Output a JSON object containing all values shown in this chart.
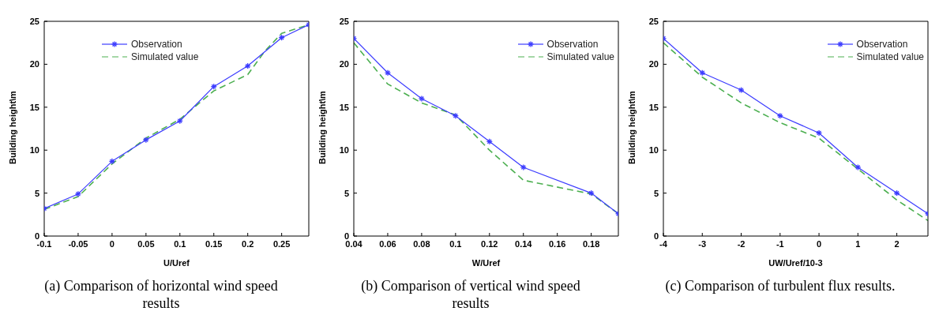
{
  "chart_data": [
    {
      "type": "line",
      "xlabel": "U/Uref",
      "ylabel": "Building height\\m",
      "xlim": [
        -0.1,
        0.29
      ],
      "xticks": [
        -0.1,
        -0.05,
        0,
        0.05,
        0.1,
        0.15,
        0.2,
        0.25
      ],
      "ylim": [
        0,
        25
      ],
      "yticks": [
        0,
        5,
        10,
        15,
        20,
        25
      ],
      "grid": false,
      "legend": "top",
      "annotations": [
        "(a) Comparison of horizontal wind speed results"
      ],
      "series": [
        {
          "name": "Observation",
          "color": "#3b3bff",
          "marker": "cross",
          "line_style": "solid",
          "x": [
            -0.1,
            -0.05,
            0,
            0.05,
            0.1,
            0.15,
            0.2,
            0.25,
            0.29
          ],
          "values": [
            3.2,
            4.9,
            8.7,
            11.2,
            13.4,
            17.4,
            19.8,
            23.1,
            24.6
          ]
        },
        {
          "name": "Simulated value",
          "color": "#4caf50",
          "marker": "none",
          "line_style": "dashed",
          "x": [
            -0.1,
            -0.05,
            0,
            0.05,
            0.1,
            0.15,
            0.2,
            0.225,
            0.25,
            0.29
          ],
          "values": [
            3.1,
            4.6,
            8.4,
            11.4,
            13.6,
            16.9,
            18.8,
            21.5,
            23.6,
            24.6
          ]
        }
      ]
    },
    {
      "type": "line",
      "xlabel": "W/Uref",
      "ylabel": "Building height\\m",
      "xlim": [
        0.04,
        0.196
      ],
      "xticks": [
        0.04,
        0.06,
        0.08,
        0.1,
        0.12,
        0.14,
        0.16,
        0.18
      ],
      "ylim": [
        0,
        25
      ],
      "yticks": [
        0,
        5,
        10,
        15,
        20,
        25
      ],
      "grid": false,
      "legend": "top right",
      "annotations": [
        "(b) Comparison of vertical wind speed results"
      ],
      "series": [
        {
          "name": "Observation",
          "color": "#3b3bff",
          "marker": "cross",
          "line_style": "solid",
          "x": [
            0.04,
            0.06,
            0.08,
            0.1,
            0.12,
            0.14,
            0.18,
            0.196
          ],
          "values": [
            23,
            19,
            16,
            14,
            11,
            8,
            5,
            2.6
          ]
        },
        {
          "name": "Simulated value",
          "color": "#4caf50",
          "marker": "none",
          "line_style": "dashed",
          "x": [
            0.04,
            0.06,
            0.08,
            0.1,
            0.12,
            0.14,
            0.18,
            0.196
          ],
          "values": [
            22.5,
            17.7,
            15.5,
            14.1,
            10,
            6.5,
            4.9,
            2.6
          ]
        }
      ]
    },
    {
      "type": "line",
      "xlabel": "UW/Uref/10-3",
      "ylabel": "Building height\\m",
      "xlim": [
        -4,
        2.8
      ],
      "xticks": [
        -4,
        -3,
        -2,
        -1,
        0,
        1,
        2
      ],
      "ylim": [
        0,
        25
      ],
      "yticks": [
        0,
        5,
        10,
        15,
        20,
        25
      ],
      "grid": false,
      "legend": "top right",
      "annotations": [
        "(c) Comparison of turbulent flux results."
      ],
      "series": [
        {
          "name": "Observation",
          "color": "#3b3bff",
          "marker": "cross",
          "line_style": "solid",
          "x": [
            -4,
            -3,
            -2,
            -1,
            0,
            1,
            2,
            2.8
          ],
          "values": [
            23,
            19,
            17,
            14,
            12,
            8,
            5,
            2.6
          ]
        },
        {
          "name": "Simulated value",
          "color": "#4caf50",
          "marker": "none",
          "line_style": "dashed",
          "x": [
            -4,
            -3,
            -2,
            -1,
            0,
            1,
            2,
            2.8
          ],
          "values": [
            22.5,
            18.5,
            15.5,
            13.2,
            11.4,
            7.8,
            4.2,
            1.8
          ]
        }
      ]
    }
  ]
}
